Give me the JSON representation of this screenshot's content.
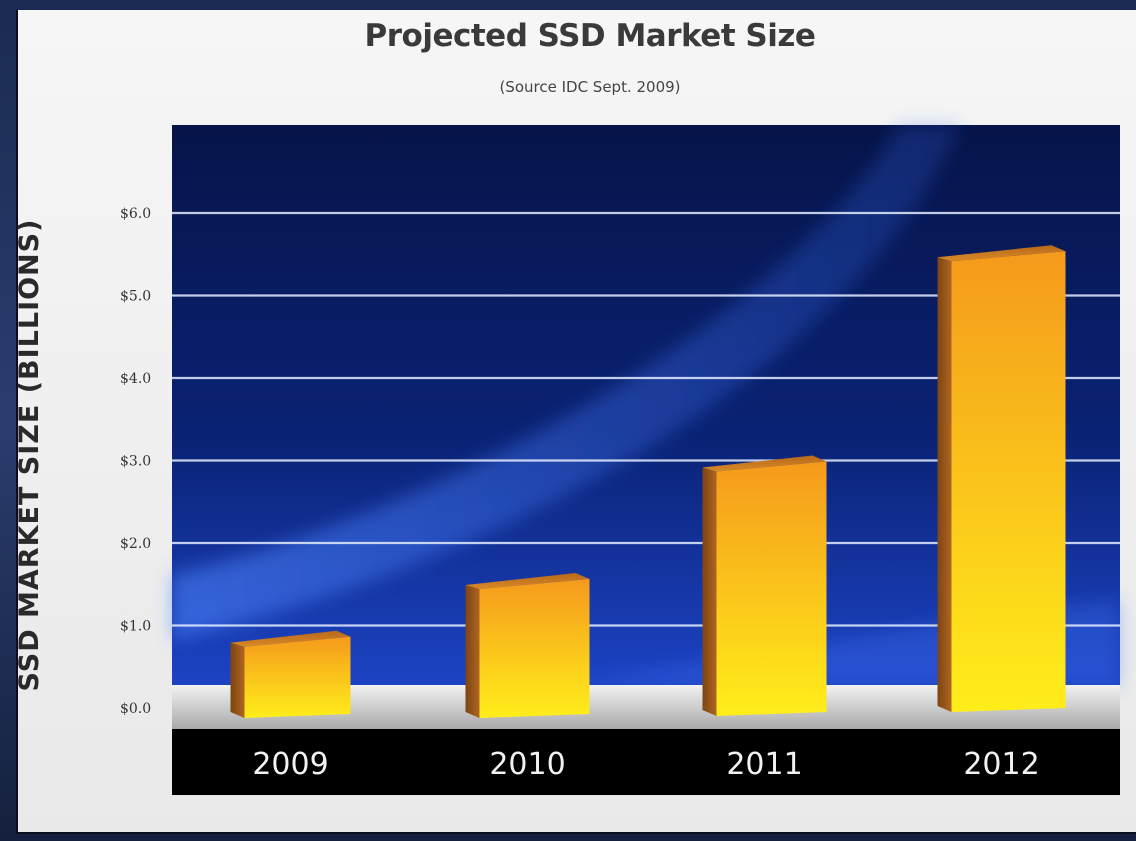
{
  "chart_data": {
    "type": "bar",
    "title": "Projected SSD Market Size",
    "subtitle": "(Source IDC Sept. 2009)",
    "ylabel": "SSD MARKET SIZE (BILLIONS)",
    "xlabel": "",
    "categories": [
      "2009",
      "2010",
      "2011",
      "2012"
    ],
    "values": [
      1.0,
      1.7,
      3.1,
      5.6
    ],
    "ylim": [
      0,
      6
    ],
    "yticks": [
      "$0.0",
      "$1.0",
      "$2.0",
      "$3.0",
      "$4.0",
      "$5.0",
      "$6.0"
    ],
    "grid": true,
    "colors": {
      "plot_background": "#0a1a5c",
      "bar_front_top": "#f59a1c",
      "bar_front_bottom": "#ffee1a",
      "bar_side": "#9a5518",
      "bar_top": "#c4741f",
      "category_band": "#000000"
    }
  }
}
